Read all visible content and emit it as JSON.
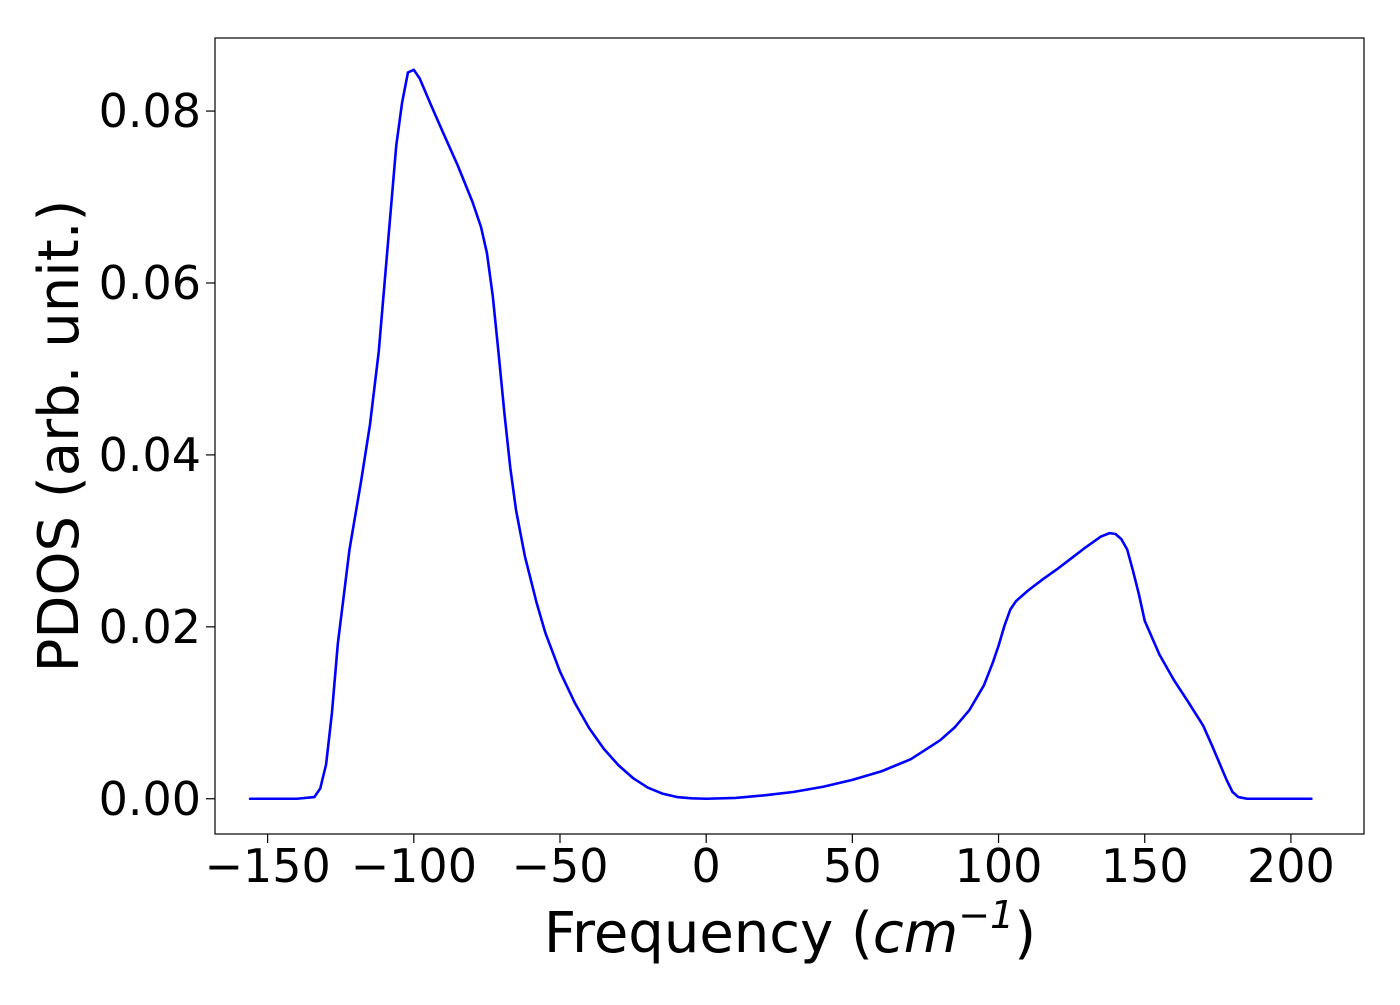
{
  "chart_data": {
    "type": "line",
    "title": "",
    "xlabel": "Frequency (cm^-1)",
    "xlabel_parts": {
      "prefix": "Frequency (",
      "unit_base": "cm",
      "unit_exponent": "−1",
      "suffix": ")"
    },
    "ylabel": "PDOS (arb. unit.)",
    "xlim": [
      -168,
      225
    ],
    "ylim": [
      -0.0041,
      0.0885
    ],
    "xticks": [
      -150,
      -100,
      -50,
      0,
      50,
      100,
      150,
      200
    ],
    "xtick_labels": [
      "−150",
      "−100",
      "−50",
      "0",
      "50",
      "100",
      "150",
      "200"
    ],
    "yticks": [
      0.0,
      0.02,
      0.04,
      0.06,
      0.08
    ],
    "ytick_labels": [
      "0.00",
      "0.02",
      "0.04",
      "0.06",
      "0.08"
    ],
    "grid": false,
    "legend": "none",
    "series": [
      {
        "color": "#0000ff",
        "x": [
          -156,
          -140,
          -134,
          -132,
          -130,
          -128,
          -126,
          -124,
          -122,
          -120,
          -118,
          -115,
          -112,
          -110,
          -108,
          -106,
          -104,
          -102,
          -100,
          -98,
          -96,
          -94,
          -90,
          -85,
          -80,
          -77,
          -75,
          -73,
          -71,
          -69,
          -67,
          -65,
          -62,
          -58,
          -55,
          -50,
          -45,
          -40,
          -35,
          -30,
          -25,
          -20,
          -15,
          -10,
          -5,
          0,
          10,
          20,
          30,
          40,
          50,
          60,
          70,
          80,
          85,
          90,
          95,
          98,
          100,
          102,
          104,
          106,
          110,
          115,
          120,
          125,
          130,
          135,
          138,
          140,
          142,
          144,
          146,
          148,
          150,
          155,
          160,
          165,
          170,
          173,
          176,
          178,
          180,
          182,
          185,
          190,
          207
        ],
        "y": [
          0.0,
          0.0,
          0.0002,
          0.0012,
          0.004,
          0.01,
          0.018,
          0.0235,
          0.029,
          0.033,
          0.037,
          0.0435,
          0.052,
          0.06,
          0.068,
          0.076,
          0.081,
          0.0845,
          0.0848,
          0.0838,
          0.0822,
          0.0806,
          0.0775,
          0.0737,
          0.0695,
          0.0665,
          0.0635,
          0.0585,
          0.0518,
          0.0448,
          0.0385,
          0.0335,
          0.0282,
          0.0228,
          0.0193,
          0.0148,
          0.0112,
          0.0082,
          0.0058,
          0.0039,
          0.0024,
          0.0013,
          0.0006,
          0.0002,
          5e-05,
          0.0,
          0.0001,
          0.0004,
          0.0008,
          0.0014,
          0.0022,
          0.0032,
          0.0046,
          0.0068,
          0.0083,
          0.0103,
          0.0132,
          0.0158,
          0.0178,
          0.0201,
          0.022,
          0.023,
          0.0242,
          0.0255,
          0.0267,
          0.028,
          0.0293,
          0.0305,
          0.0309,
          0.0308,
          0.0302,
          0.029,
          0.0265,
          0.0238,
          0.0207,
          0.0168,
          0.0138,
          0.0112,
          0.0085,
          0.0062,
          0.0038,
          0.0022,
          0.0008,
          0.0002,
          0.0,
          0.0,
          0.0
        ]
      }
    ]
  }
}
